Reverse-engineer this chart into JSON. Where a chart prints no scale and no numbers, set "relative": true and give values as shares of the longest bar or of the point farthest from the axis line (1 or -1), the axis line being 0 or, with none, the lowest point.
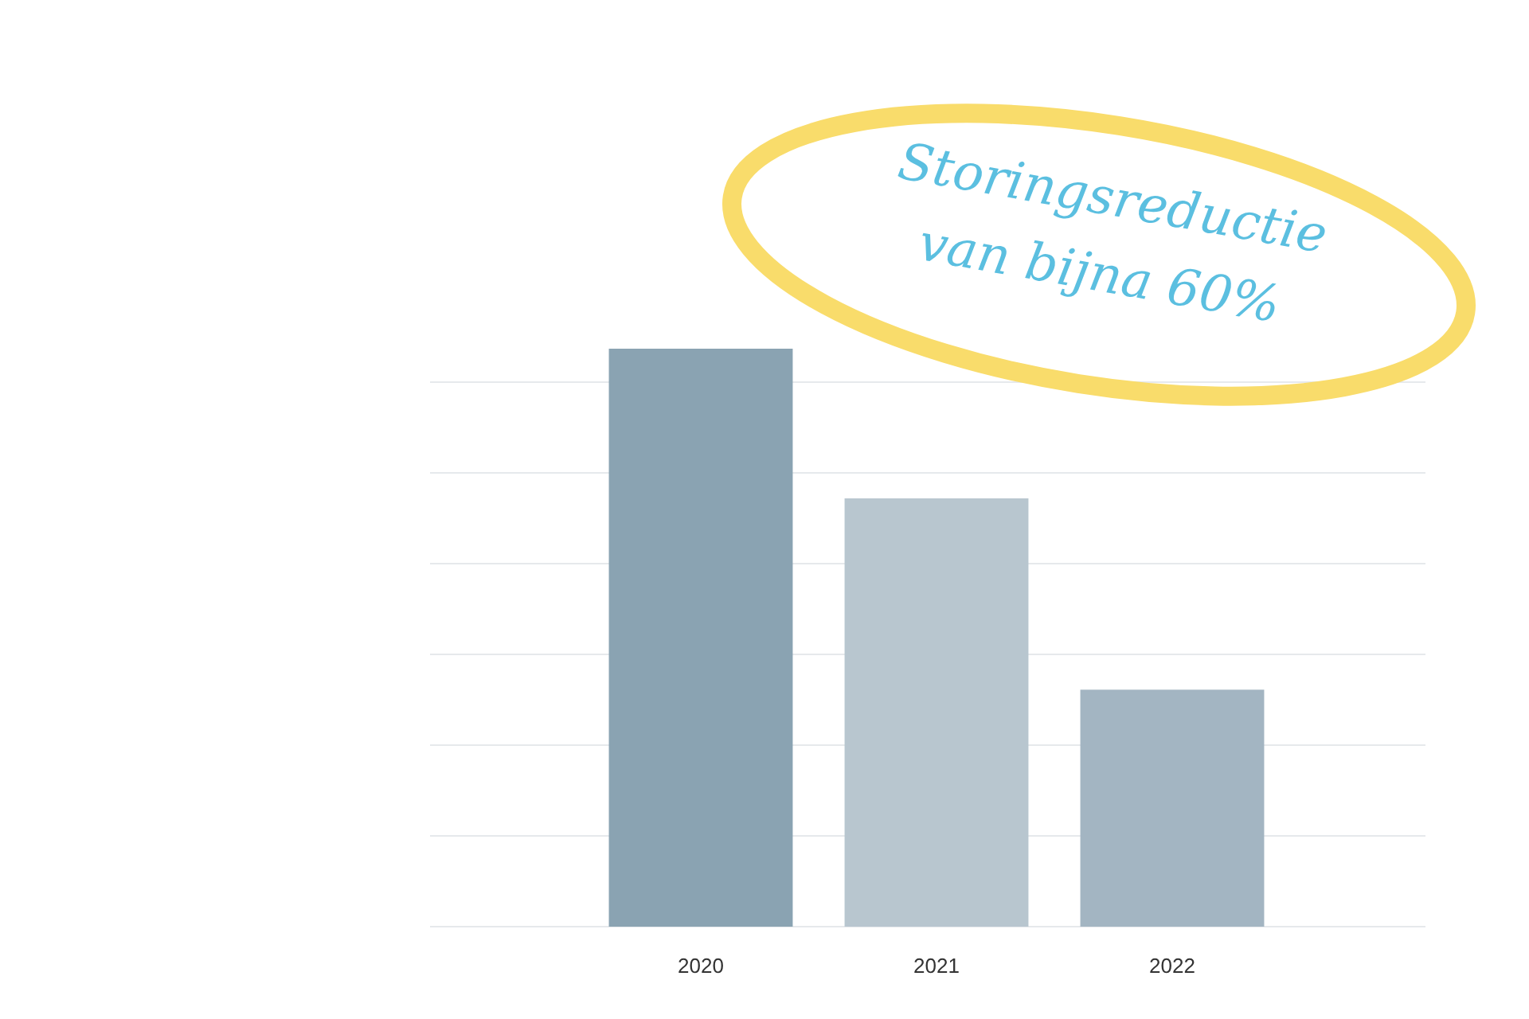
{
  "chart_data": {
    "type": "bar",
    "relative": true,
    "categories": [
      "2020",
      "2021",
      "2022"
    ],
    "values": [
      1,
      0.741,
      0.41
    ],
    "colors": [
      "#8aa3b2",
      "#b8c6cf",
      "#a3b5c2"
    ],
    "grid": true,
    "annotations": [
      "Storingsreductie van bijna 60%"
    ]
  }
}
